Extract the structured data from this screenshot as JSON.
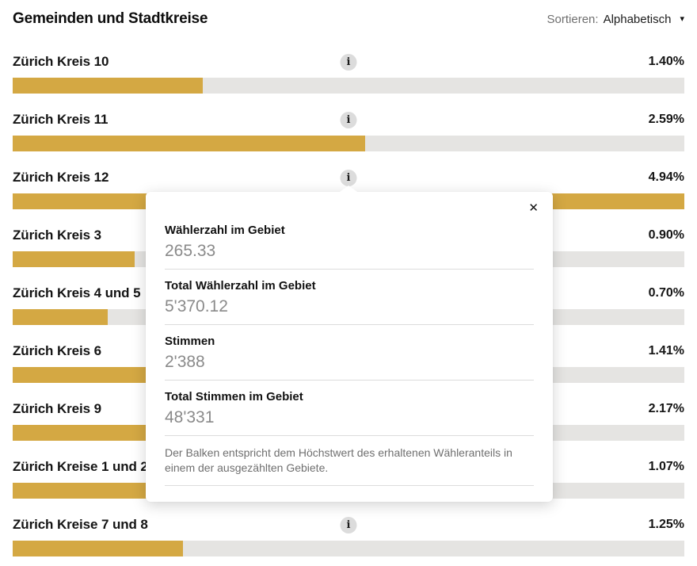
{
  "header": {
    "title": "Gemeinden und Stadtkreise",
    "sort": {
      "label": "Sortieren:",
      "value": "Alphabetisch",
      "caret_icon": "▾"
    }
  },
  "chart_data": {
    "type": "bar",
    "orientation": "horizontal",
    "title": "Gemeinden und Stadtkreise",
    "unit": "%",
    "axis_max": 4.94,
    "grid": false,
    "legend_position": "none",
    "categories": [
      "Zürich Kreis 10",
      "Zürich Kreis 11",
      "Zürich Kreis 12",
      "Zürich Kreis 3",
      "Zürich Kreis 4 und 5",
      "Zürich Kreis 6",
      "Zürich Kreis 9",
      "Zürich Kreise 1 und 2",
      "Zürich Kreise 7 und 8"
    ],
    "values": [
      1.4,
      2.59,
      4.94,
      0.9,
      0.7,
      1.41,
      2.17,
      1.07,
      1.25
    ],
    "value_labels": [
      "1.40%",
      "2.59%",
      "4.94%",
      "0.90%",
      "0.70%",
      "1.41%",
      "2.17%",
      "1.07%",
      "1.25%"
    ],
    "bar_color": "#d4a843",
    "track_color": "#e5e4e2",
    "info_icon": "i"
  },
  "popup": {
    "close_icon": "✕",
    "fields": [
      {
        "label": "Wählerzahl im Gebiet",
        "value": "265.33"
      },
      {
        "label": "Total Wählerzahl im Gebiet",
        "value": "5'370.12"
      },
      {
        "label": "Stimmen",
        "value": "2'388"
      },
      {
        "label": "Total Stimmen im Gebiet",
        "value": "48'331"
      }
    ],
    "footnote": "Der Balken entspricht dem Höchstwert des erhaltenen Wähleranteils in einem der ausgezählten Gebiete."
  }
}
